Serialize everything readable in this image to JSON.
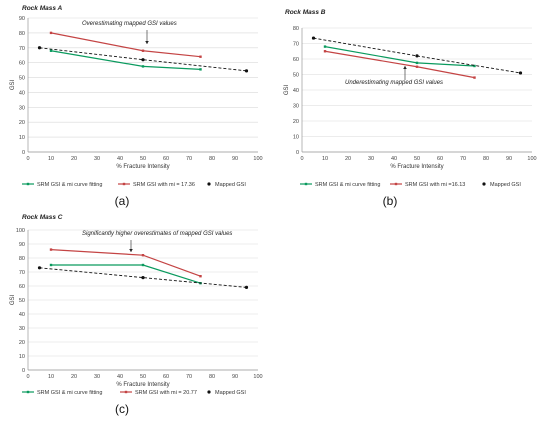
{
  "colors": {
    "srm_fit": "#0a9a5e",
    "srm_mi": "#c44444",
    "mapped": "#111111",
    "grid": "#d9d9d9",
    "axis_text": "#444444"
  },
  "chart_data": [
    {
      "type": "line",
      "panel_label": "(a)",
      "title": "Rock Mass A",
      "annotation": "Overestimating  mapped GSI values",
      "xlabel": "% Fracture  Intensity",
      "ylabel": "GSI",
      "xlim": [
        0,
        100
      ],
      "ylim": [
        0,
        90
      ],
      "xticks": [
        "0",
        "10",
        "20",
        "30",
        "40",
        "50",
        "60",
        "70",
        "80",
        "90",
        "100"
      ],
      "yticks": [
        "0",
        "10",
        "20",
        "30",
        "40",
        "50",
        "60",
        "70",
        "80",
        "90"
      ],
      "grid": "horizontal",
      "legend_position": "bottom",
      "series": [
        {
          "name": "SRM GSI & mi curve fitting",
          "style": "solid",
          "color": "#0a9a5e",
          "points": [
            [
              10,
              68
            ],
            [
              50,
              57.5
            ],
            [
              75,
              55.5
            ]
          ]
        },
        {
          "name": "SRM GSI with mi = 17.36",
          "style": "solid",
          "color": "#c44444",
          "points": [
            [
              10,
              80
            ],
            [
              50,
              68
            ],
            [
              75,
              64
            ]
          ]
        },
        {
          "name": "Mapped GSI",
          "style": "dashed",
          "color": "#111111",
          "points": [
            [
              5,
              70
            ],
            [
              50,
              62
            ],
            [
              95,
              54.5
            ]
          ]
        }
      ]
    },
    {
      "type": "line",
      "panel_label": "(b)",
      "title": "Rock Mass B",
      "annotation": "Underestimating  mapped GSI values",
      "xlabel": "% Fracture  Intensity",
      "ylabel": "GSI",
      "xlim": [
        0,
        100
      ],
      "ylim": [
        0,
        80
      ],
      "xticks": [
        "0",
        "10",
        "20",
        "30",
        "40",
        "50",
        "60",
        "70",
        "80",
        "90",
        "100"
      ],
      "yticks": [
        "0",
        "10",
        "20",
        "30",
        "40",
        "50",
        "60",
        "70",
        "80"
      ],
      "grid": "horizontal",
      "legend_position": "bottom",
      "series": [
        {
          "name": "SRM GSI & mi curve fitting",
          "style": "solid",
          "color": "#0a9a5e",
          "points": [
            [
              10,
              68
            ],
            [
              50,
              57.5
            ],
            [
              75,
              55.5
            ]
          ]
        },
        {
          "name": "SRM GSI with mi =16.13",
          "style": "solid",
          "color": "#c44444",
          "points": [
            [
              10,
              65
            ],
            [
              50,
              55
            ],
            [
              75,
              48
            ]
          ]
        },
        {
          "name": "Mapped GSI",
          "style": "dashed",
          "color": "#111111",
          "points": [
            [
              5,
              73.5
            ],
            [
              50,
              62
            ],
            [
              95,
              51
            ]
          ]
        }
      ]
    },
    {
      "type": "line",
      "panel_label": "(c)",
      "title": "Rock Mass C",
      "annotation": "Significantly  higher overestimates  of mapped GSI values",
      "xlabel": "% Fracture  Intensity",
      "ylabel": "GSI",
      "xlim": [
        0,
        100
      ],
      "ylim": [
        0,
        100
      ],
      "xticks": [
        "0",
        "10",
        "20",
        "30",
        "40",
        "50",
        "60",
        "70",
        "80",
        "90",
        "100"
      ],
      "yticks": [
        "0",
        "10",
        "20",
        "30",
        "40",
        "50",
        "60",
        "70",
        "80",
        "90",
        "100"
      ],
      "grid": "horizontal",
      "legend_position": "bottom",
      "series": [
        {
          "name": "SRM GSI & mi curve fitting",
          "style": "solid",
          "color": "#0a9a5e",
          "points": [
            [
              10,
              75
            ],
            [
              50,
              75
            ],
            [
              75,
              62
            ]
          ]
        },
        {
          "name": "SRM GSI with mi =  20.77",
          "style": "solid",
          "color": "#c44444",
          "points": [
            [
              10,
              86
            ],
            [
              50,
              82
            ],
            [
              75,
              67
            ]
          ]
        },
        {
          "name": "Mapped GSI",
          "style": "dashed",
          "color": "#111111",
          "points": [
            [
              5,
              73
            ],
            [
              50,
              66
            ],
            [
              95,
              59
            ]
          ]
        }
      ]
    }
  ]
}
